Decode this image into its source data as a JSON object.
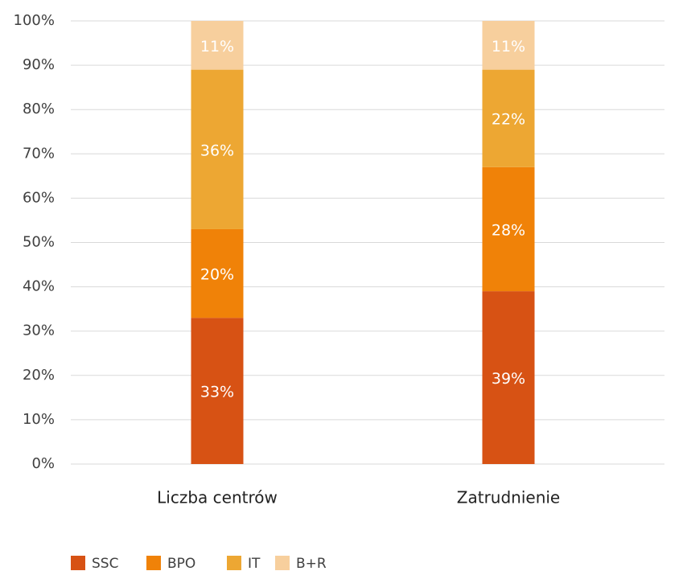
{
  "chart_data": {
    "type": "stacked_bar",
    "categories": [
      "Liczba centrów",
      "Zatrudnienie"
    ],
    "series": [
      {
        "name": "SSC",
        "color": "#d75214",
        "values": [
          33,
          39
        ],
        "value_labels": [
          "33%",
          "39%"
        ]
      },
      {
        "name": "BPO",
        "color": "#f08208",
        "values": [
          20,
          28
        ],
        "value_labels": [
          "20%",
          "28%"
        ]
      },
      {
        "name": "IT",
        "color": "#eda733",
        "values": [
          36,
          22
        ],
        "value_labels": [
          "36%",
          "22%"
        ]
      },
      {
        "name": "B+R",
        "color": "#f7cf9d",
        "values": [
          11,
          11
        ],
        "value_labels": [
          "11%",
          "11%"
        ]
      }
    ],
    "ylim": [
      0,
      100
    ],
    "yticks": [
      {
        "value": 0,
        "label": "0%"
      },
      {
        "value": 10,
        "label": "10%"
      },
      {
        "value": 20,
        "label": "20%"
      },
      {
        "value": 30,
        "label": "30%"
      },
      {
        "value": 40,
        "label": "40%"
      },
      {
        "value": 50,
        "label": "50%"
      },
      {
        "value": 60,
        "label": "60%"
      },
      {
        "value": 70,
        "label": "70%"
      },
      {
        "value": 80,
        "label": "80%"
      },
      {
        "value": 90,
        "label": "90%"
      },
      {
        "value": 100,
        "label": "100%"
      }
    ],
    "grid": true,
    "legend": "bottom-left"
  }
}
